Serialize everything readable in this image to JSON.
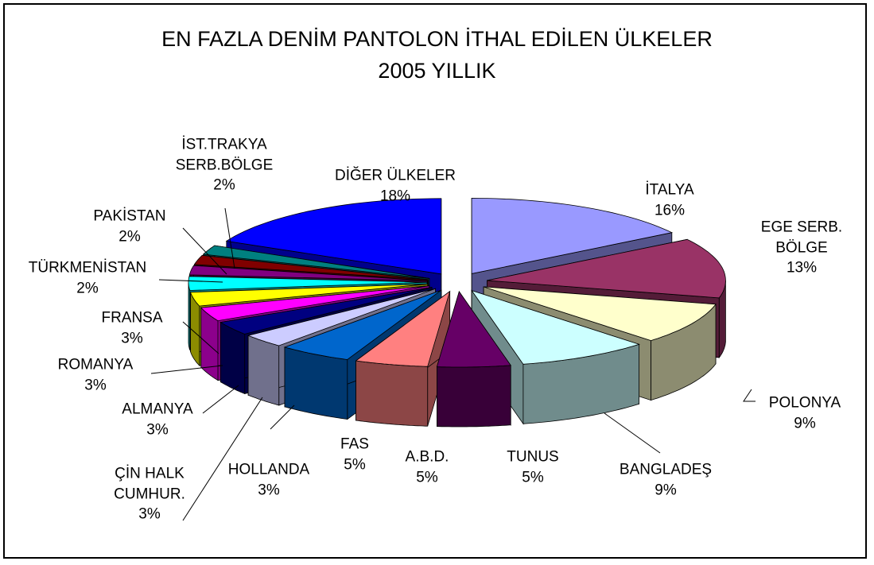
{
  "chart_data": {
    "type": "pie",
    "title": "EN FAZLA DENİM PANTOLON İTHAL EDİLEN ÜLKELER",
    "subtitle": "2005 YILLIK",
    "categories": [
      "İTALYA",
      "EGE SERB. BÖLGE",
      "POLONYA",
      "BANGLADEŞ",
      "TUNUS",
      "A.B.D.",
      "FAS",
      "HOLLANDA",
      "ÇİN HALK CUMHUR.",
      "ALMANYA",
      "ROMANYA",
      "FRANSA",
      "TÜRKMENİSTAN",
      "PAKİSTAN",
      "İST.TRAKYA SERB.BÖLGE",
      "DİĞER ÜLKELER"
    ],
    "values": [
      16,
      13,
      9,
      9,
      5,
      5,
      5,
      3,
      3,
      3,
      3,
      3,
      2,
      2,
      2,
      18
    ],
    "value_labels": [
      "16%",
      "13%",
      "9%",
      "9%",
      "5%",
      "5%",
      "5%",
      "3%",
      "3%",
      "3%",
      "3%",
      "3%",
      "2%",
      "2%",
      "2%",
      "18%"
    ],
    "colors": [
      "#9999ff",
      "#993366",
      "#ffffcc",
      "#ccffff",
      "#660066",
      "#ff8080",
      "#0066cc",
      "#ccccff",
      "#000080",
      "#ff00ff",
      "#ffff00",
      "#00ffff",
      "#800080",
      "#800000",
      "#008080",
      "#0000ff"
    ]
  }
}
